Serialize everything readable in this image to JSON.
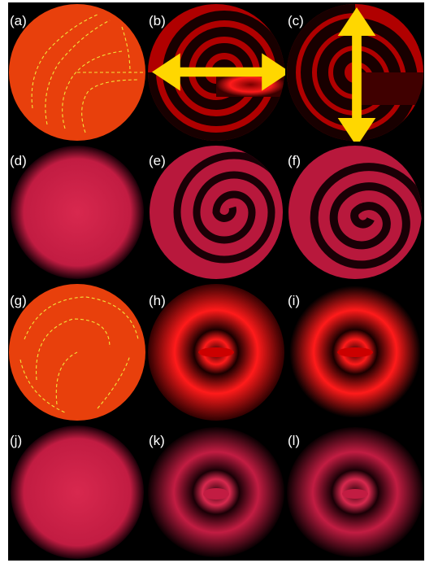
{
  "figure": {
    "background": "#000000",
    "panels": [
      {
        "id": "a",
        "label": "(a)",
        "kind": "vector-field-spiral"
      },
      {
        "id": "b",
        "label": "(b)",
        "kind": "simulated-spiral",
        "polarizer": "horizontal-arrow-icon"
      },
      {
        "id": "c",
        "label": "(c)",
        "kind": "simulated-spiral",
        "polarizer": "vertical-arrow-icon"
      },
      {
        "id": "d",
        "label": "(d)",
        "kind": "measured-uniform"
      },
      {
        "id": "e",
        "label": "(e)",
        "kind": "measured-spiral"
      },
      {
        "id": "f",
        "label": "(f)",
        "kind": "measured-spiral"
      },
      {
        "id": "g",
        "label": "(g)",
        "kind": "vector-field-spiral"
      },
      {
        "id": "h",
        "label": "(h)",
        "kind": "simulated-rings"
      },
      {
        "id": "i",
        "label": "(i)",
        "kind": "simulated-rings"
      },
      {
        "id": "j",
        "label": "(j)",
        "kind": "measured-uniform"
      },
      {
        "id": "k",
        "label": "(k)",
        "kind": "measured-rings"
      },
      {
        "id": "l",
        "label": "(l)",
        "kind": "measured-rings"
      }
    ],
    "colors": {
      "field_disk": "#e8400c",
      "vector_arrows": "#f2e33a",
      "intensity_red": "#ff1a1a",
      "measured_pink": "#d8284e",
      "polarizer_arrow": "#ffd700"
    }
  }
}
